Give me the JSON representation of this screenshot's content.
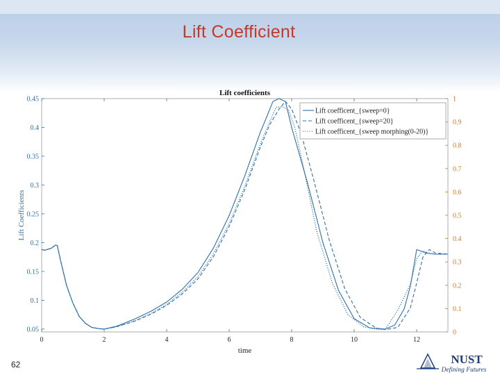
{
  "slide": {
    "title": "Lift  Coefficient",
    "page_number": "62"
  },
  "logo": {
    "name": "NUST",
    "tagline": "Defining Futures",
    "color": "#1f3f7a"
  },
  "colors": {
    "title": "#c0392b",
    "series": "#2f6fa8",
    "left_axis": "#2f6fa8",
    "right_axis": "#d07a2c"
  },
  "chart_data": {
    "type": "line",
    "title": "Lift coefficients",
    "xlabel": "time",
    "ylabel": "Lift Coefficients",
    "xlim": [
      0,
      13
    ],
    "ylim": [
      0.045,
      0.45
    ],
    "y2lim": [
      0,
      1
    ],
    "x_ticks": [
      "0",
      "2",
      "4",
      "6",
      "8",
      "10",
      "12"
    ],
    "y_ticks": [
      "0.05",
      "0.1",
      "0.15",
      "0.2",
      "0.25",
      "0.3",
      "0.35",
      "0.4",
      "0.45"
    ],
    "y2_ticks": [
      "0",
      "0.1",
      "0.2",
      "0.3",
      "0.4",
      "0.5",
      "0.6",
      "0.7",
      "0.8",
      "0.9",
      "1"
    ],
    "grid": false,
    "legend_position": "top-right",
    "series": [
      {
        "name": "Lift coefficent_{sweep=0}",
        "style": "solid",
        "x": [
          0,
          0.1,
          0.3,
          0.45,
          0.5,
          0.6,
          0.8,
          1.0,
          1.2,
          1.4,
          1.6,
          1.8,
          2.0,
          2.4,
          3.0,
          3.5,
          4.0,
          4.5,
          5.0,
          5.5,
          6.0,
          6.5,
          7.0,
          7.2,
          7.4,
          7.6,
          7.8,
          8.0,
          8.5,
          9.0,
          9.5,
          10.0,
          10.5,
          11.0,
          11.3,
          11.6,
          11.8,
          12.0,
          12.3,
          12.6,
          13.0
        ],
        "y": [
          0.188,
          0.187,
          0.19,
          0.196,
          0.195,
          0.17,
          0.125,
          0.095,
          0.072,
          0.06,
          0.053,
          0.051,
          0.05,
          0.055,
          0.068,
          0.081,
          0.097,
          0.119,
          0.148,
          0.191,
          0.247,
          0.316,
          0.392,
          0.418,
          0.445,
          0.45,
          0.445,
          0.4,
          0.305,
          0.2,
          0.117,
          0.068,
          0.052,
          0.05,
          0.057,
          0.085,
          0.125,
          0.188,
          0.182,
          0.18,
          0.18
        ]
      },
      {
        "name": "Lift coefficent_{sweep=20}",
        "style": "dashed",
        "x": [
          0,
          0.1,
          0.3,
          0.45,
          0.5,
          0.6,
          0.8,
          1.0,
          1.2,
          1.4,
          1.6,
          1.8,
          2.0,
          2.4,
          3.0,
          3.5,
          4.0,
          4.5,
          5.0,
          5.5,
          6.0,
          6.5,
          7.0,
          7.3,
          7.6,
          7.8,
          8.0,
          8.3,
          8.7,
          9.2,
          9.7,
          10.2,
          10.7,
          11.0,
          11.4,
          11.8,
          12.0,
          12.2,
          12.4,
          12.6,
          13.0
        ],
        "y": [
          0.188,
          0.187,
          0.19,
          0.196,
          0.195,
          0.17,
          0.125,
          0.095,
          0.072,
          0.06,
          0.053,
          0.051,
          0.05,
          0.054,
          0.064,
          0.076,
          0.091,
          0.111,
          0.137,
          0.176,
          0.228,
          0.292,
          0.366,
          0.405,
          0.432,
          0.445,
          0.432,
          0.39,
          0.31,
          0.205,
          0.12,
          0.07,
          0.052,
          0.049,
          0.053,
          0.087,
          0.13,
          0.175,
          0.188,
          0.182,
          0.18
        ]
      },
      {
        "name": "Lift coefficent_{sweep morphing(0-20)}",
        "style": "dotted",
        "x": [
          0,
          0.1,
          0.3,
          0.45,
          0.5,
          0.6,
          0.8,
          1.0,
          1.2,
          1.4,
          1.6,
          1.8,
          2.0,
          2.4,
          3.0,
          3.5,
          4.0,
          4.5,
          5.0,
          5.5,
          6.0,
          6.5,
          7.0,
          7.3,
          7.5,
          7.7,
          7.9,
          8.1,
          8.4,
          8.8,
          9.3,
          9.8,
          10.3,
          10.8,
          11.0,
          11.4,
          11.8,
          12.0,
          12.2,
          12.4,
          12.6,
          13.0
        ],
        "y": [
          0.188,
          0.187,
          0.19,
          0.196,
          0.195,
          0.17,
          0.125,
          0.095,
          0.072,
          0.06,
          0.053,
          0.051,
          0.05,
          0.054,
          0.065,
          0.077,
          0.093,
          0.114,
          0.141,
          0.181,
          0.233,
          0.298,
          0.372,
          0.41,
          0.435,
          0.436,
          0.43,
          0.4,
          0.325,
          0.22,
          0.13,
          0.075,
          0.054,
          0.049,
          0.05,
          0.083,
          0.128,
          0.172,
          0.186,
          0.181,
          0.18,
          0.18
        ]
      }
    ]
  }
}
